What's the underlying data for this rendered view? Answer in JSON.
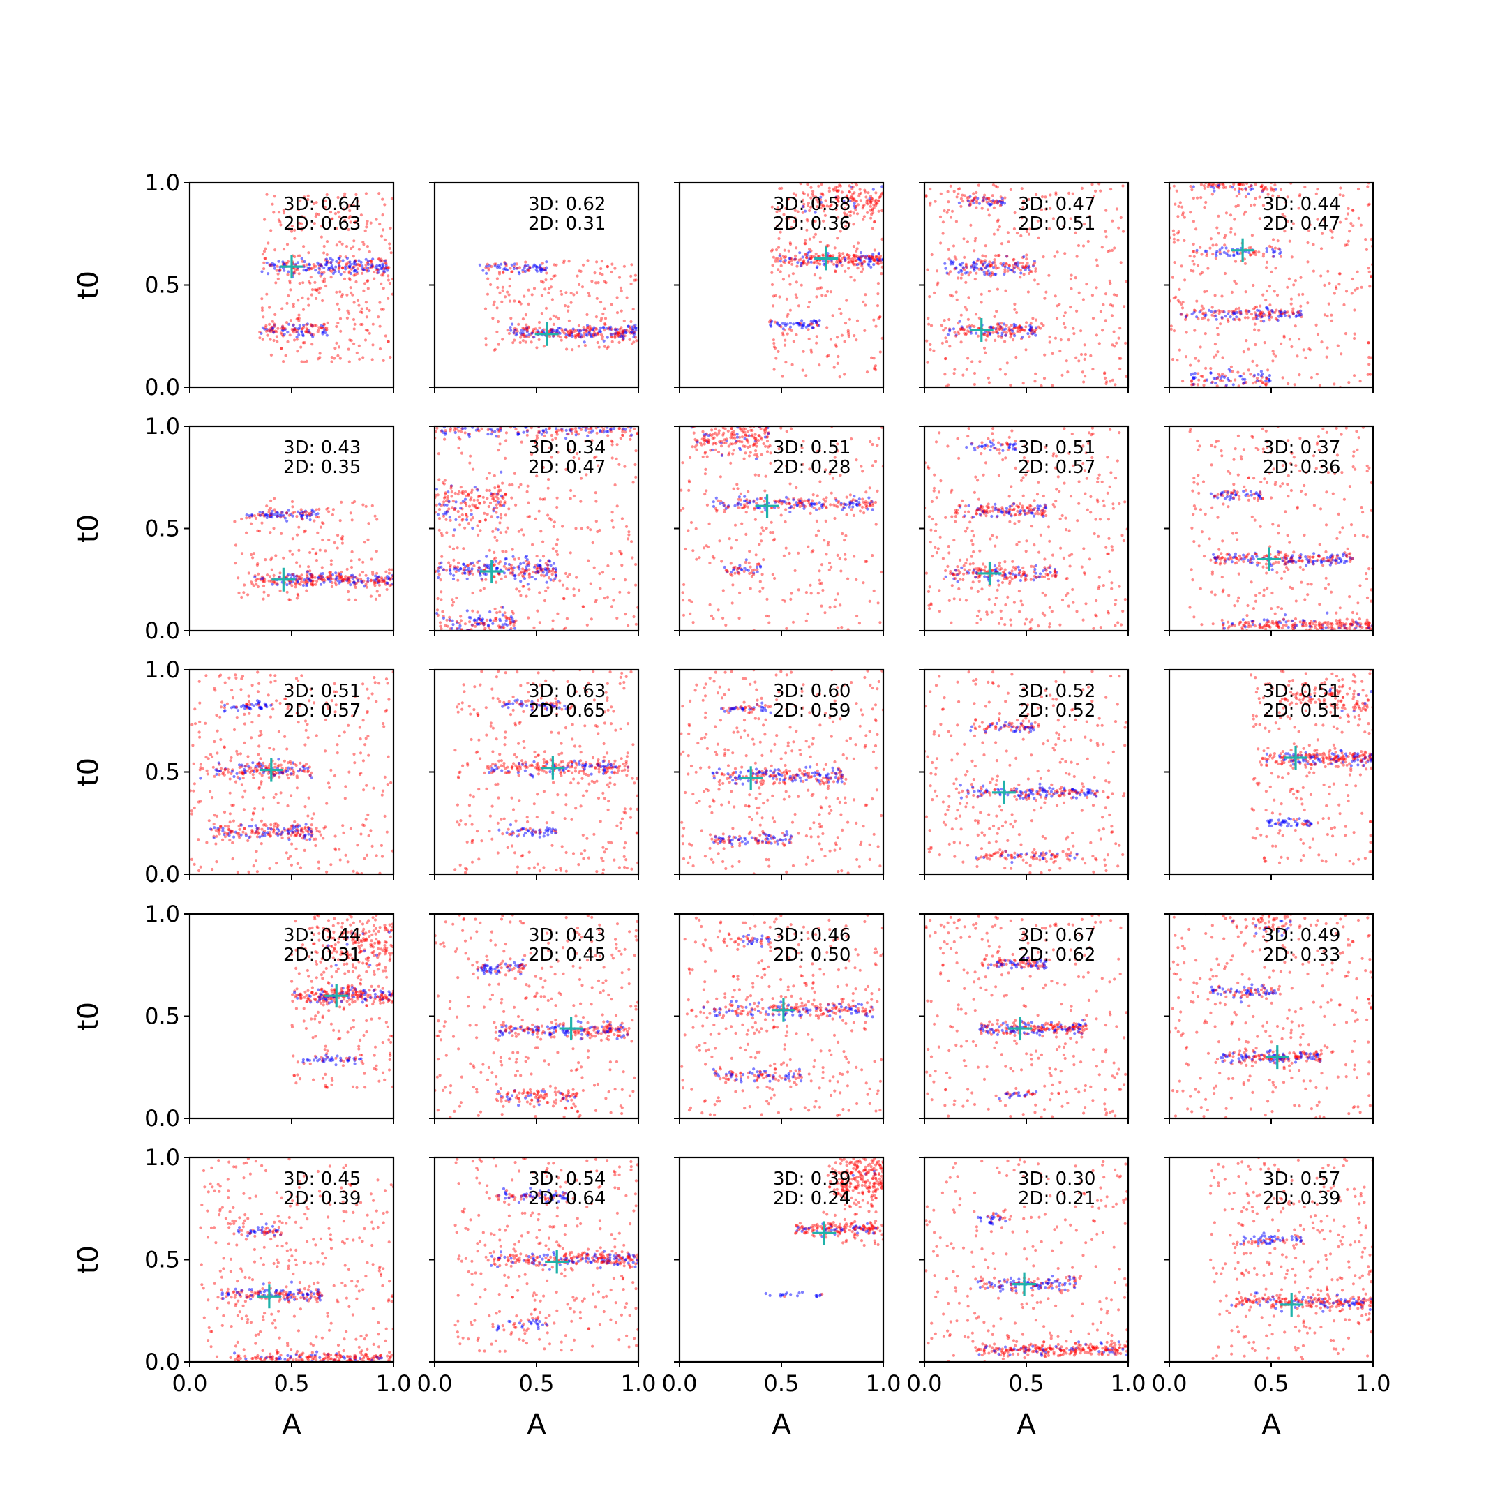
{
  "figure": {
    "xlabel": "A",
    "ylabel": "t0",
    "x_ticks": [
      "0.0",
      "0.5",
      "1.0"
    ],
    "y_ticks": [
      "0.0",
      "0.5",
      "1.0"
    ]
  },
  "chart_data": {
    "type": "scatter",
    "layout": "5x5 grid of scatter panels",
    "xlabel": "A",
    "ylabel": "t0",
    "xlim": [
      0,
      1
    ],
    "ylim": [
      0,
      1
    ],
    "grid": false,
    "colors": {
      "samples_red": "#ff0000",
      "samples_blue": "#0000ff",
      "true_marker": "#20b2aa"
    },
    "panels": [
      {
        "text3d": "3D: 0.64",
        "text2d": "2D: 0.63",
        "truth": [
          0.5,
          0.59
        ],
        "clusters": [
          {
            "a0": 0.35,
            "a1": 0.98,
            "t": 0.59,
            "w": 0.02,
            "n": 230,
            "p": 0.5
          },
          {
            "a0": 0.33,
            "a1": 0.68,
            "t": 0.28,
            "w": 0.018,
            "n": 110,
            "p": 0.4
          }
        ],
        "scatter": {
          "a0": 0.35,
          "a1": 1.0,
          "t0": 0.12,
          "t1": 0.95,
          "n": 300
        }
      },
      {
        "text3d": "3D: 0.62",
        "text2d": "2D: 0.31",
        "truth": [
          0.55,
          0.26
        ],
        "clusters": [
          {
            "a0": 0.36,
            "a1": 1.0,
            "t": 0.27,
            "w": 0.018,
            "n": 260,
            "p": 0.4
          },
          {
            "a0": 0.22,
            "a1": 0.55,
            "t": 0.585,
            "w": 0.012,
            "n": 70,
            "p": 0.75
          }
        ],
        "scatter": {
          "a0": 0.25,
          "a1": 1.0,
          "t0": 0.18,
          "t1": 0.62,
          "n": 180
        }
      },
      {
        "text3d": "3D: 0.58",
        "text2d": "2D: 0.36",
        "truth": [
          0.72,
          0.63
        ],
        "clusters": [
          {
            "a0": 0.46,
            "a1": 1.0,
            "t": 0.625,
            "w": 0.018,
            "n": 220,
            "p": 0.3
          },
          {
            "a0": 0.43,
            "a1": 0.7,
            "t": 0.31,
            "w": 0.01,
            "n": 55,
            "p": 0.8
          },
          {
            "a0": 0.6,
            "a1": 1.0,
            "t": 0.92,
            "w": 0.05,
            "n": 150,
            "p": 0.1
          }
        ],
        "scatter": {
          "a0": 0.45,
          "a1": 1.0,
          "t0": 0.05,
          "t1": 1.0,
          "n": 220
        }
      },
      {
        "text3d": "3D: 0.47",
        "text2d": "2D: 0.51",
        "truth": [
          0.28,
          0.28
        ],
        "clusters": [
          {
            "a0": 0.1,
            "a1": 0.55,
            "t": 0.59,
            "w": 0.02,
            "n": 150,
            "p": 0.4
          },
          {
            "a0": 0.08,
            "a1": 0.55,
            "t": 0.28,
            "w": 0.02,
            "n": 150,
            "p": 0.4
          },
          {
            "a0": 0.15,
            "a1": 0.4,
            "t": 0.91,
            "w": 0.012,
            "n": 60,
            "p": 0.5
          }
        ],
        "scatter": {
          "a0": 0.0,
          "a1": 1.0,
          "t0": 0.0,
          "t1": 1.0,
          "n": 320
        }
      },
      {
        "text3d": "3D: 0.44",
        "text2d": "2D: 0.47",
        "truth": [
          0.36,
          0.67
        ],
        "clusters": [
          {
            "a0": 0.1,
            "a1": 0.55,
            "t": 0.665,
            "w": 0.012,
            "n": 60,
            "p": 0.6
          },
          {
            "a0": 0.05,
            "a1": 0.65,
            "t": 0.36,
            "w": 0.015,
            "n": 140,
            "p": 0.5
          },
          {
            "a0": 0.1,
            "a1": 0.5,
            "t": 0.04,
            "w": 0.02,
            "n": 80,
            "p": 0.5
          },
          {
            "a0": 0.1,
            "a1": 0.55,
            "t": 0.98,
            "w": 0.02,
            "n": 80,
            "p": 0.3
          }
        ],
        "scatter": {
          "a0": 0.0,
          "a1": 1.0,
          "t0": 0.0,
          "t1": 1.0,
          "n": 340
        }
      },
      {
        "text3d": "3D: 0.43",
        "text2d": "2D: 0.35",
        "truth": [
          0.46,
          0.25
        ],
        "clusters": [
          {
            "a0": 0.3,
            "a1": 1.0,
            "t": 0.25,
            "w": 0.016,
            "n": 260,
            "p": 0.35
          },
          {
            "a0": 0.27,
            "a1": 0.64,
            "t": 0.57,
            "w": 0.012,
            "n": 90,
            "p": 0.6
          }
        ],
        "scatter": {
          "a0": 0.22,
          "a1": 1.0,
          "t0": 0.15,
          "t1": 0.65,
          "n": 150
        }
      },
      {
        "text3d": "3D: 0.34",
        "text2d": "2D: 0.47",
        "truth": [
          0.28,
          0.29
        ],
        "clusters": [
          {
            "a0": 0.0,
            "a1": 0.6,
            "t": 0.3,
            "w": 0.025,
            "n": 220,
            "p": 0.6
          },
          {
            "a0": 0.0,
            "a1": 1.0,
            "t": 0.98,
            "w": 0.015,
            "n": 150,
            "p": 0.5
          },
          {
            "a0": 0.0,
            "a1": 0.35,
            "t": 0.63,
            "w": 0.06,
            "n": 150,
            "p": 0.2
          },
          {
            "a0": 0.0,
            "a1": 0.4,
            "t": 0.04,
            "w": 0.03,
            "n": 120,
            "p": 0.5
          }
        ],
        "scatter": {
          "a0": 0.0,
          "a1": 1.0,
          "t0": 0.0,
          "t1": 1.0,
          "n": 300
        }
      },
      {
        "text3d": "3D: 0.51",
        "text2d": "2D: 0.28",
        "truth": [
          0.43,
          0.61
        ],
        "clusters": [
          {
            "a0": 0.15,
            "a1": 0.95,
            "t": 0.62,
            "w": 0.015,
            "n": 180,
            "p": 0.45
          },
          {
            "a0": 0.05,
            "a1": 0.45,
            "t": 0.94,
            "w": 0.04,
            "n": 170,
            "p": 0.15
          },
          {
            "a0": 0.2,
            "a1": 0.4,
            "t": 0.3,
            "w": 0.015,
            "n": 40,
            "p": 0.6
          }
        ],
        "scatter": {
          "a0": 0.0,
          "a1": 1.0,
          "t0": 0.0,
          "t1": 1.0,
          "n": 260
        }
      },
      {
        "text3d": "3D: 0.51",
        "text2d": "2D: 0.57",
        "truth": [
          0.32,
          0.28
        ],
        "clusters": [
          {
            "a0": 0.15,
            "a1": 0.6,
            "t": 0.59,
            "w": 0.018,
            "n": 140,
            "p": 0.4
          },
          {
            "a0": 0.1,
            "a1": 0.65,
            "t": 0.28,
            "w": 0.02,
            "n": 150,
            "p": 0.4
          },
          {
            "a0": 0.2,
            "a1": 0.45,
            "t": 0.9,
            "w": 0.012,
            "n": 45,
            "p": 0.6
          }
        ],
        "scatter": {
          "a0": 0.0,
          "a1": 1.0,
          "t0": 0.0,
          "t1": 1.0,
          "n": 320
        }
      },
      {
        "text3d": "3D: 0.37",
        "text2d": "2D: 0.36",
        "truth": [
          0.49,
          0.35
        ],
        "clusters": [
          {
            "a0": 0.2,
            "a1": 0.9,
            "t": 0.35,
            "w": 0.015,
            "n": 200,
            "p": 0.5
          },
          {
            "a0": 0.2,
            "a1": 0.45,
            "t": 0.665,
            "w": 0.012,
            "n": 55,
            "p": 0.6
          },
          {
            "a0": 0.25,
            "a1": 1.0,
            "t": 0.03,
            "w": 0.015,
            "n": 200,
            "p": 0.2
          }
        ],
        "scatter": {
          "a0": 0.1,
          "a1": 1.0,
          "t0": 0.0,
          "t1": 1.0,
          "n": 260
        }
      },
      {
        "text3d": "3D: 0.51",
        "text2d": "2D: 0.57",
        "truth": [
          0.4,
          0.51
        ],
        "clusters": [
          {
            "a0": 0.05,
            "a1": 0.6,
            "t": 0.51,
            "w": 0.018,
            "n": 160,
            "p": 0.4
          },
          {
            "a0": 0.1,
            "a1": 0.6,
            "t": 0.21,
            "w": 0.02,
            "n": 170,
            "p": 0.3
          },
          {
            "a0": 0.15,
            "a1": 0.4,
            "t": 0.82,
            "w": 0.012,
            "n": 50,
            "p": 0.6
          }
        ],
        "scatter": {
          "a0": 0.0,
          "a1": 1.0,
          "t0": 0.0,
          "t1": 1.0,
          "n": 320
        }
      },
      {
        "text3d": "3D: 0.63",
        "text2d": "2D: 0.65",
        "truth": [
          0.58,
          0.52
        ],
        "clusters": [
          {
            "a0": 0.25,
            "a1": 0.95,
            "t": 0.52,
            "w": 0.018,
            "n": 200,
            "p": 0.35
          },
          {
            "a0": 0.3,
            "a1": 0.65,
            "t": 0.83,
            "w": 0.012,
            "n": 60,
            "p": 0.6
          },
          {
            "a0": 0.3,
            "a1": 0.6,
            "t": 0.21,
            "w": 0.012,
            "n": 50,
            "p": 0.6
          }
        ],
        "scatter": {
          "a0": 0.1,
          "a1": 1.0,
          "t0": 0.0,
          "t1": 1.0,
          "n": 300
        }
      },
      {
        "text3d": "3D: 0.60",
        "text2d": "2D: 0.59",
        "truth": [
          0.35,
          0.47
        ],
        "clusters": [
          {
            "a0": 0.15,
            "a1": 0.8,
            "t": 0.48,
            "w": 0.018,
            "n": 190,
            "p": 0.4
          },
          {
            "a0": 0.15,
            "a1": 0.55,
            "t": 0.17,
            "w": 0.015,
            "n": 90,
            "p": 0.5
          },
          {
            "a0": 0.2,
            "a1": 0.45,
            "t": 0.81,
            "w": 0.012,
            "n": 50,
            "p": 0.5
          }
        ],
        "scatter": {
          "a0": 0.0,
          "a1": 1.0,
          "t0": 0.0,
          "t1": 1.0,
          "n": 320
        }
      },
      {
        "text3d": "3D: 0.52",
        "text2d": "2D: 0.52",
        "truth": [
          0.39,
          0.4
        ],
        "clusters": [
          {
            "a0": 0.15,
            "a1": 0.85,
            "t": 0.4,
            "w": 0.015,
            "n": 170,
            "p": 0.5
          },
          {
            "a0": 0.2,
            "a1": 0.55,
            "t": 0.72,
            "w": 0.015,
            "n": 70,
            "p": 0.5
          },
          {
            "a0": 0.25,
            "a1": 0.75,
            "t": 0.09,
            "w": 0.012,
            "n": 80,
            "p": 0.4
          }
        ],
        "scatter": {
          "a0": 0.0,
          "a1": 1.0,
          "t0": 0.0,
          "t1": 1.0,
          "n": 280
        }
      },
      {
        "text3d": "3D: 0.51",
        "text2d": "2D: 0.51",
        "truth": [
          0.62,
          0.57
        ],
        "clusters": [
          {
            "a0": 0.45,
            "a1": 1.0,
            "t": 0.57,
            "w": 0.018,
            "n": 220,
            "p": 0.35
          },
          {
            "a0": 0.48,
            "a1": 0.7,
            "t": 0.25,
            "w": 0.01,
            "n": 45,
            "p": 0.7
          },
          {
            "a0": 0.55,
            "a1": 1.0,
            "t": 0.85,
            "w": 0.05,
            "n": 120,
            "p": 0.1
          }
        ],
        "scatter": {
          "a0": 0.4,
          "a1": 1.0,
          "t0": 0.05,
          "t1": 1.0,
          "n": 200
        }
      },
      {
        "text3d": "3D: 0.44",
        "text2d": "2D: 0.31",
        "truth": [
          0.72,
          0.6
        ],
        "clusters": [
          {
            "a0": 0.5,
            "a1": 1.0,
            "t": 0.6,
            "w": 0.02,
            "n": 240,
            "p": 0.25
          },
          {
            "a0": 0.55,
            "a1": 0.85,
            "t": 0.29,
            "w": 0.01,
            "n": 45,
            "p": 0.7
          },
          {
            "a0": 0.6,
            "a1": 1.0,
            "t": 0.85,
            "w": 0.07,
            "n": 180,
            "p": 0.05
          }
        ],
        "scatter": {
          "a0": 0.5,
          "a1": 1.0,
          "t0": 0.15,
          "t1": 1.0,
          "n": 180
        }
      },
      {
        "text3d": "3D: 0.43",
        "text2d": "2D: 0.45",
        "truth": [
          0.67,
          0.44
        ],
        "clusters": [
          {
            "a0": 0.3,
            "a1": 0.95,
            "t": 0.43,
            "w": 0.016,
            "n": 200,
            "p": 0.4
          },
          {
            "a0": 0.2,
            "a1": 0.45,
            "t": 0.74,
            "w": 0.015,
            "n": 70,
            "p": 0.6
          },
          {
            "a0": 0.3,
            "a1": 0.7,
            "t": 0.11,
            "w": 0.02,
            "n": 100,
            "p": 0.2
          }
        ],
        "scatter": {
          "a0": 0.0,
          "a1": 1.0,
          "t0": 0.0,
          "t1": 1.0,
          "n": 300
        }
      },
      {
        "text3d": "3D: 0.46",
        "text2d": "2D: 0.50",
        "truth": [
          0.51,
          0.53
        ],
        "clusters": [
          {
            "a0": 0.1,
            "a1": 0.95,
            "t": 0.53,
            "w": 0.018,
            "n": 200,
            "p": 0.4
          },
          {
            "a0": 0.15,
            "a1": 0.6,
            "t": 0.21,
            "w": 0.015,
            "n": 90,
            "p": 0.4
          },
          {
            "a0": 0.2,
            "a1": 0.45,
            "t": 0.87,
            "w": 0.012,
            "n": 40,
            "p": 0.5
          }
        ],
        "scatter": {
          "a0": 0.0,
          "a1": 1.0,
          "t0": 0.0,
          "t1": 1.0,
          "n": 320
        }
      },
      {
        "text3d": "3D: 0.67",
        "text2d": "2D: 0.62",
        "truth": [
          0.47,
          0.44
        ],
        "clusters": [
          {
            "a0": 0.25,
            "a1": 0.8,
            "t": 0.44,
            "w": 0.016,
            "n": 200,
            "p": 0.35
          },
          {
            "a0": 0.28,
            "a1": 0.6,
            "t": 0.76,
            "w": 0.015,
            "n": 90,
            "p": 0.5
          },
          {
            "a0": 0.35,
            "a1": 0.55,
            "t": 0.12,
            "w": 0.012,
            "n": 30,
            "p": 0.5
          }
        ],
        "scatter": {
          "a0": 0.0,
          "a1": 1.0,
          "t0": 0.0,
          "t1": 1.0,
          "n": 280
        }
      },
      {
        "text3d": "3D: 0.49",
        "text2d": "2D: 0.33",
        "truth": [
          0.53,
          0.3
        ],
        "clusters": [
          {
            "a0": 0.25,
            "a1": 0.75,
            "t": 0.3,
            "w": 0.016,
            "n": 170,
            "p": 0.4
          },
          {
            "a0": 0.2,
            "a1": 0.55,
            "t": 0.62,
            "w": 0.015,
            "n": 80,
            "p": 0.6
          },
          {
            "a0": 0.3,
            "a1": 0.6,
            "t": 0.95,
            "w": 0.03,
            "n": 60,
            "p": 0.3
          }
        ],
        "scatter": {
          "a0": 0.0,
          "a1": 1.0,
          "t0": 0.0,
          "t1": 1.0,
          "n": 300
        }
      },
      {
        "text3d": "3D: 0.45",
        "text2d": "2D: 0.39",
        "truth": [
          0.39,
          0.32
        ],
        "clusters": [
          {
            "a0": 0.15,
            "a1": 0.65,
            "t": 0.33,
            "w": 0.016,
            "n": 150,
            "p": 0.5
          },
          {
            "a0": 0.2,
            "a1": 1.0,
            "t": 0.02,
            "w": 0.015,
            "n": 200,
            "p": 0.2
          },
          {
            "a0": 0.2,
            "a1": 0.45,
            "t": 0.64,
            "w": 0.012,
            "n": 50,
            "p": 0.6
          }
        ],
        "scatter": {
          "a0": 0.05,
          "a1": 1.0,
          "t0": 0.0,
          "t1": 1.0,
          "n": 320
        }
      },
      {
        "text3d": "3D: 0.54",
        "text2d": "2D: 0.64",
        "truth": [
          0.6,
          0.49
        ],
        "clusters": [
          {
            "a0": 0.25,
            "a1": 1.0,
            "t": 0.5,
            "w": 0.018,
            "n": 240,
            "p": 0.3
          },
          {
            "a0": 0.3,
            "a1": 0.65,
            "t": 0.81,
            "w": 0.015,
            "n": 80,
            "p": 0.6
          },
          {
            "a0": 0.3,
            "a1": 0.55,
            "t": 0.18,
            "w": 0.02,
            "n": 40,
            "p": 0.4
          }
        ],
        "scatter": {
          "a0": 0.1,
          "a1": 1.0,
          "t0": 0.05,
          "t1": 1.0,
          "n": 280
        }
      },
      {
        "text3d": "3D: 0.39",
        "text2d": "2D: 0.24",
        "truth": [
          0.71,
          0.63
        ],
        "clusters": [
          {
            "a0": 0.55,
            "a1": 1.0,
            "t": 0.65,
            "w": 0.015,
            "n": 150,
            "p": 0.25
          },
          {
            "a0": 0.75,
            "a1": 1.0,
            "t": 0.9,
            "w": 0.07,
            "n": 220,
            "p": 0.03
          },
          {
            "a0": 0.4,
            "a1": 0.7,
            "t": 0.33,
            "w": 0.006,
            "n": 20,
            "p": 0.9
          }
        ],
        "scatter": {
          "a0": 0.7,
          "a1": 1.0,
          "t0": 0.55,
          "t1": 1.0,
          "n": 60
        }
      },
      {
        "text3d": "3D: 0.30",
        "text2d": "2D: 0.21",
        "truth": [
          0.49,
          0.38
        ],
        "clusters": [
          {
            "a0": 0.25,
            "a1": 0.75,
            "t": 0.38,
            "w": 0.016,
            "n": 120,
            "p": 0.5
          },
          {
            "a0": 0.25,
            "a1": 1.0,
            "t": 0.06,
            "w": 0.015,
            "n": 250,
            "p": 0.15
          },
          {
            "a0": 0.25,
            "a1": 0.4,
            "t": 0.7,
            "w": 0.01,
            "n": 25,
            "p": 0.8
          }
        ],
        "scatter": {
          "a0": 0.0,
          "a1": 1.0,
          "t0": 0.0,
          "t1": 1.0,
          "n": 240
        }
      },
      {
        "text3d": "3D: 0.57",
        "text2d": "2D: 0.39",
        "truth": [
          0.6,
          0.28
        ],
        "clusters": [
          {
            "a0": 0.3,
            "a1": 1.0,
            "t": 0.29,
            "w": 0.016,
            "n": 220,
            "p": 0.3
          },
          {
            "a0": 0.35,
            "a1": 0.65,
            "t": 0.6,
            "w": 0.012,
            "n": 60,
            "p": 0.7
          }
        ],
        "scatter": {
          "a0": 0.2,
          "a1": 1.0,
          "t0": 0.0,
          "t1": 1.0,
          "n": 300
        }
      }
    ]
  }
}
